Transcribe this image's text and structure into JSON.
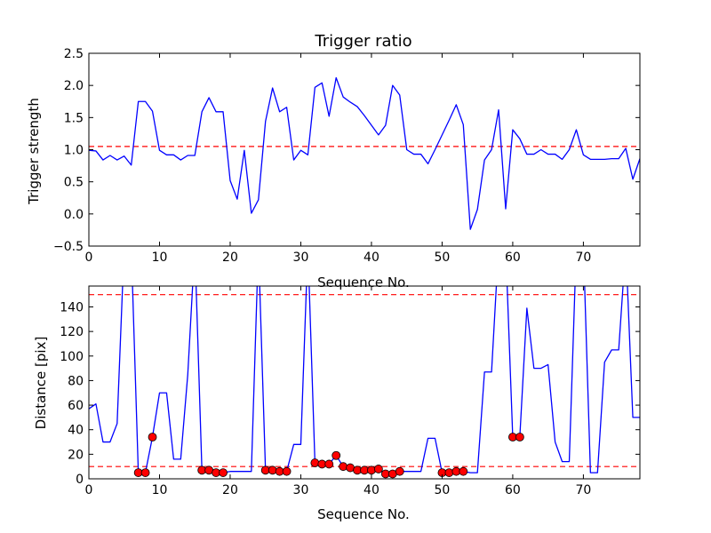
{
  "chart_data": [
    {
      "type": "line",
      "title": "Trigger ratio",
      "xlabel": "Sequence No.",
      "ylabel": "Trigger strength",
      "xlim": [
        0,
        78
      ],
      "ylim": [
        -0.5,
        2.5
      ],
      "xticks": [
        "0",
        "10",
        "20",
        "30",
        "40",
        "50",
        "60",
        "70"
      ],
      "yticks": [
        "−0.5",
        "0.0",
        "0.5",
        "1.0",
        "1.5",
        "2.0",
        "2.5"
      ],
      "grid": false,
      "threshold": 1.05,
      "line_color": "#0000ff",
      "threshold_color": "#ff0000",
      "series": [
        {
          "x": [
            0,
            1,
            2,
            3,
            4,
            5,
            6,
            7,
            8,
            9,
            10,
            11,
            12,
            13,
            14,
            15,
            16,
            17,
            18,
            19,
            20,
            21,
            22,
            23,
            24,
            25,
            26,
            27,
            28,
            29,
            30,
            31,
            32,
            33,
            34,
            35,
            36,
            37,
            38,
            39,
            40,
            41,
            42,
            43,
            44,
            45,
            46,
            47,
            48,
            49,
            50,
            51,
            52,
            53,
            54,
            55,
            56,
            57,
            58,
            59,
            60,
            61,
            62,
            63,
            64,
            65,
            66,
            67,
            68,
            69,
            70,
            71,
            72,
            73,
            74,
            75,
            76,
            77,
            78
          ],
          "values": [
            0.99,
            0.98,
            0.84,
            0.91,
            0.84,
            0.9,
            0.76,
            1.75,
            1.75,
            1.6,
            0.99,
            0.92,
            0.92,
            0.84,
            0.91,
            0.91,
            1.59,
            1.81,
            1.59,
            1.59,
            0.52,
            0.23,
            0.99,
            0.01,
            0.22,
            1.44,
            1.96,
            1.59,
            1.66,
            0.84,
            0.99,
            0.92,
            1.97,
            2.04,
            1.52,
            2.12,
            1.82,
            1.74,
            1.67,
            1.53,
            1.38,
            1.23,
            1.38,
            2.0,
            1.85,
            1.0,
            0.93,
            0.93,
            0.78,
            1.0,
            1.23,
            1.46,
            1.7,
            1.39,
            -0.24,
            0.07,
            0.84,
            1.0,
            1.62,
            0.08,
            1.31,
            1.17,
            0.93,
            0.93,
            1.0,
            0.93,
            0.93,
            0.85,
            1.0,
            1.31,
            0.92,
            0.85,
            0.85,
            0.85,
            0.86,
            0.86,
            1.02,
            0.54,
            0.86
          ]
        }
      ]
    },
    {
      "type": "line",
      "title": "",
      "xlabel": "Sequence No.",
      "ylabel": "Distance [pix]",
      "xlim": [
        0,
        78
      ],
      "ylim": [
        0,
        157
      ],
      "xticks": [
        "0",
        "10",
        "20",
        "30",
        "40",
        "50",
        "60",
        "70"
      ],
      "yticks": [
        "0",
        "20",
        "40",
        "60",
        "80",
        "100",
        "120",
        "140"
      ],
      "grid": false,
      "thresholds": [
        10,
        150
      ],
      "line_color": "#0000ff",
      "threshold_color": "#ff0000",
      "marker_color": "#ff0000",
      "series": [
        {
          "x": [
            0,
            1,
            2,
            3,
            4,
            5,
            6,
            7,
            8,
            9,
            10,
            11,
            12,
            13,
            14,
            15,
            16,
            17,
            18,
            19,
            20,
            21,
            22,
            23,
            24,
            25,
            26,
            27,
            28,
            29,
            30,
            31,
            32,
            33,
            34,
            35,
            36,
            37,
            38,
            39,
            40,
            41,
            42,
            43,
            44,
            45,
            46,
            47,
            48,
            49,
            50,
            51,
            52,
            53,
            54,
            55,
            56,
            57,
            58,
            59,
            60,
            61,
            62,
            63,
            64,
            65,
            66,
            67,
            68,
            69,
            70,
            71,
            72,
            73,
            74,
            75,
            76,
            77,
            78
          ],
          "values": [
            57,
            61,
            30,
            30,
            45,
            190,
            190,
            5,
            5,
            34,
            70,
            70,
            16,
            16,
            85,
            190,
            7,
            7,
            5,
            5,
            6,
            6,
            6,
            6,
            190,
            7,
            7,
            6,
            6,
            28,
            28,
            190,
            13,
            12,
            12,
            19,
            10,
            9,
            7,
            7,
            7,
            8,
            4,
            4,
            6,
            6,
            6,
            6,
            33,
            33,
            5,
            5,
            6,
            6,
            5,
            5,
            87,
            87,
            190,
            190,
            34,
            34,
            139,
            90,
            90,
            93,
            30,
            14,
            14,
            190,
            190,
            5,
            5,
            95,
            105,
            105,
            190,
            50,
            50
          ]
        },
        {
          "name": "",
          "style": "markers",
          "x": [
            7,
            8,
            9,
            16,
            17,
            18,
            19,
            25,
            26,
            27,
            28,
            32,
            33,
            34,
            35,
            36,
            37,
            38,
            39,
            40,
            41,
            42,
            43,
            44,
            50,
            51,
            52,
            53,
            60,
            61
          ],
          "values": [
            5,
            5,
            34,
            7,
            7,
            5,
            5,
            7,
            7,
            6,
            6,
            13,
            12,
            12,
            19,
            10,
            9,
            7,
            7,
            7,
            8,
            4,
            4,
            6,
            5,
            5,
            6,
            6,
            34,
            34
          ]
        }
      ]
    }
  ]
}
